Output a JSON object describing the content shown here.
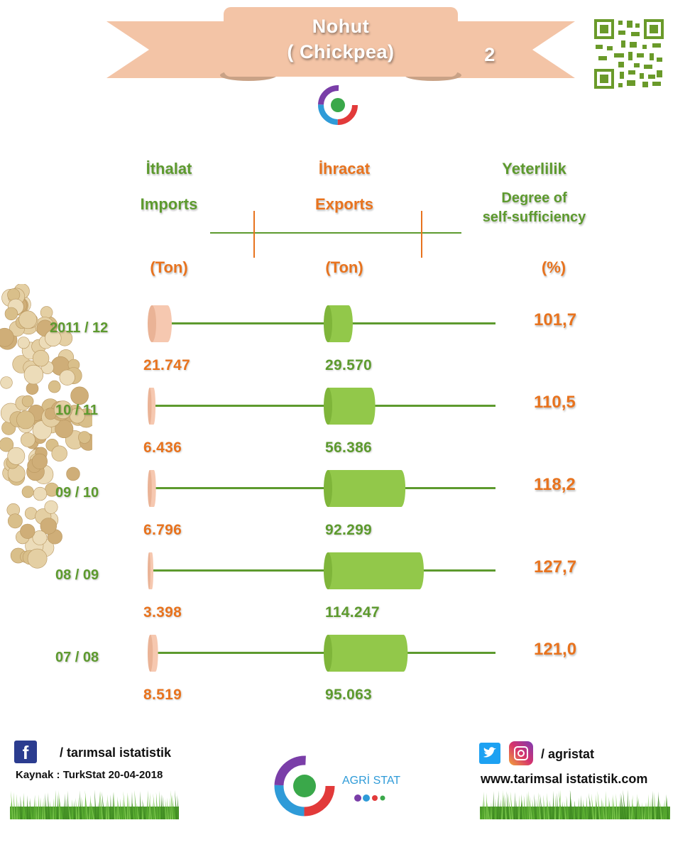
{
  "banner": {
    "title_tr": "Nohut",
    "title_en": "( Chickpea)",
    "number": "2"
  },
  "headers": {
    "imports_tr": "İthalat",
    "imports_en": "Imports",
    "imports_unit": "(Ton)",
    "exports_tr": "İhracat",
    "exports_en": "Exports",
    "exports_unit": "(Ton)",
    "ss_tr": "Yeterlilik",
    "ss_en_1": "Degree of",
    "ss_en_2": "self-sufficiency",
    "ss_unit": "(%)"
  },
  "chart_data": {
    "type": "bar",
    "categories": [
      "2011 / 12",
      "10 / 11",
      "09 / 10",
      "08 / 09",
      "07 / 08"
    ],
    "series": [
      {
        "name": "Imports",
        "values": [
          21747,
          6436,
          6796,
          3398,
          8519
        ],
        "labels": [
          "21.747",
          "6.436",
          "6.796",
          "3.398",
          "8.519"
        ],
        "color": "#f6c8b0"
      },
      {
        "name": "Exports",
        "values": [
          29570,
          56386,
          92299,
          114247,
          95063
        ],
        "labels": [
          "29.570",
          "56.386",
          "92.299",
          "114.247",
          "95.063"
        ],
        "color": "#92c84a"
      },
      {
        "name": "Degree of self-sufficiency",
        "values": [
          101.7,
          110.5,
          118.2,
          127.7,
          121.0
        ],
        "labels": [
          "101,7",
          "110,5",
          "118,2",
          "127,7",
          "121,0"
        ],
        "color": "#e8731e"
      }
    ]
  },
  "footer": {
    "facebook": "/ tarımsal istatistik",
    "source": "Kaynak : TurkStat  20-04-2018",
    "brand": "AGRİ STAT",
    "social": "/ agristat",
    "website": "www.tarimsal istatistik.com"
  },
  "colors": {
    "green": "#5d9a2e",
    "orange": "#e8731e",
    "banner": "#f3c4a6"
  }
}
